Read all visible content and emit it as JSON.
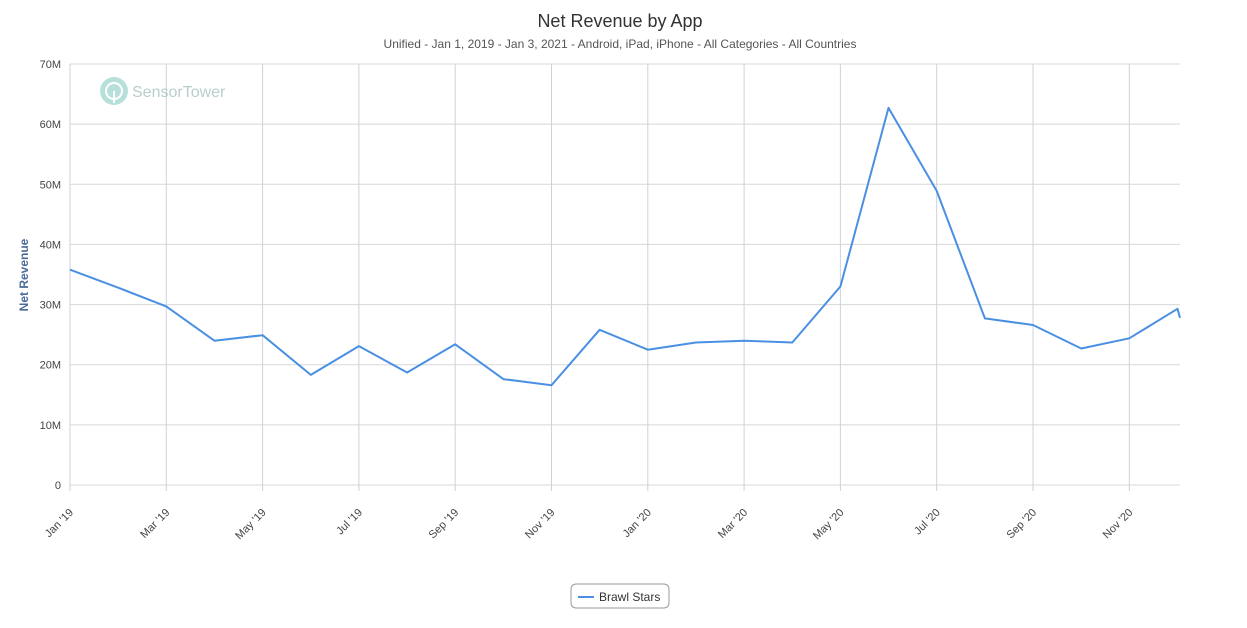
{
  "chart_data": {
    "type": "line",
    "title": "Net Revenue by App",
    "subtitle": "Unified - Jan 1, 2019 - Jan 3, 2021 - Android, iPad, iPhone - All Categories - All Countries",
    "ylabel": "Net Revenue",
    "xlabel": "",
    "ylim": [
      0,
      70000000
    ],
    "yticks": [
      {
        "value": 0,
        "label": "0"
      },
      {
        "value": 10000000,
        "label": "10M"
      },
      {
        "value": 20000000,
        "label": "20M"
      },
      {
        "value": 30000000,
        "label": "30M"
      },
      {
        "value": 40000000,
        "label": "40M"
      },
      {
        "value": 50000000,
        "label": "50M"
      },
      {
        "value": 60000000,
        "label": "60M"
      },
      {
        "value": 70000000,
        "label": "70M"
      }
    ],
    "x": [
      "2019-01",
      "2019-02",
      "2019-03",
      "2019-04",
      "2019-05",
      "2019-06",
      "2019-07",
      "2019-08",
      "2019-09",
      "2019-10",
      "2019-11",
      "2019-12",
      "2020-01",
      "2020-02",
      "2020-03",
      "2020-04",
      "2020-05",
      "2020-06",
      "2020-07",
      "2020-08",
      "2020-09",
      "2020-10",
      "2020-11",
      "2020-12",
      "2021-01"
    ],
    "xticks": [
      {
        "x": "2019-01",
        "label": "Jan '19"
      },
      {
        "x": "2019-03",
        "label": "Mar '19"
      },
      {
        "x": "2019-05",
        "label": "May '19"
      },
      {
        "x": "2019-07",
        "label": "Jul '19"
      },
      {
        "x": "2019-09",
        "label": "Sep '19"
      },
      {
        "x": "2019-11",
        "label": "Nov '19"
      },
      {
        "x": "2020-01",
        "label": "Jan '20"
      },
      {
        "x": "2020-03",
        "label": "Mar '20"
      },
      {
        "x": "2020-05",
        "label": "May '20"
      },
      {
        "x": "2020-07",
        "label": "Jul '20"
      },
      {
        "x": "2020-09",
        "label": "Sep '20"
      },
      {
        "x": "2020-11",
        "label": "Nov '20"
      }
    ],
    "series": [
      {
        "name": "Brawl Stars",
        "color": "#4a90e2",
        "values": [
          35.8,
          32.8,
          29.7,
          24.0,
          24.9,
          18.3,
          23.1,
          18.7,
          23.4,
          17.6,
          16.6,
          25.8,
          22.5,
          23.7,
          24.0,
          23.7,
          33.0,
          62.7,
          48.9,
          27.7,
          26.6,
          22.7,
          24.4,
          29.3,
          27.8
        ],
        "value_unit": "millions"
      }
    ],
    "grid": true,
    "legend": "bottom-center",
    "watermark": "SensorTower"
  }
}
